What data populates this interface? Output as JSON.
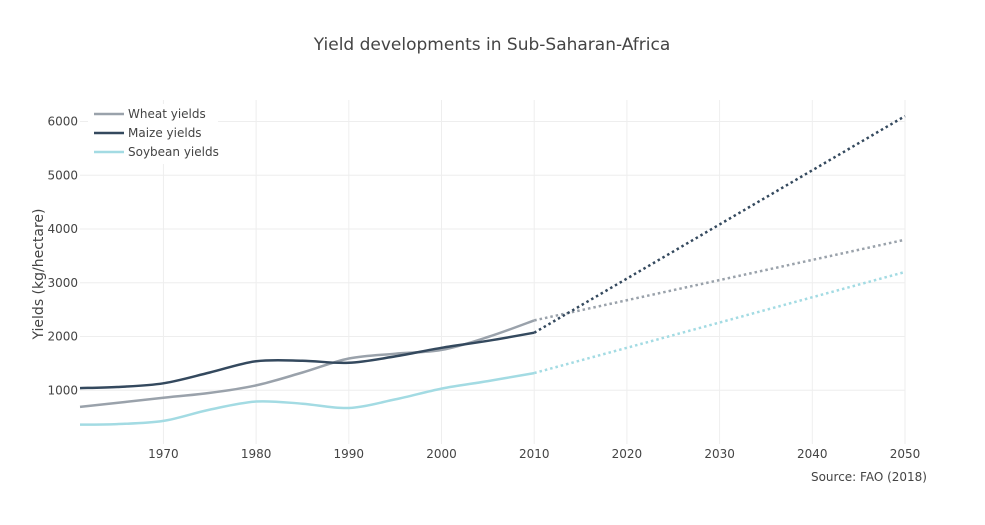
{
  "chart_data": {
    "type": "line",
    "title": "Yield developments in Sub-Saharan-Africa",
    "xlabel": "",
    "ylabel": "Yields (kg/hectare)",
    "source": "Source: FAO (2018)",
    "xlim": [
      1961,
      2050
    ],
    "ylim": [
      0,
      6400
    ],
    "xticks": [
      1970,
      1980,
      1990,
      2000,
      2010,
      2020,
      2030,
      2040,
      2050
    ],
    "yticks": [
      1000,
      2000,
      3000,
      4000,
      5000,
      6000
    ],
    "grid": true,
    "legend_position": "top-left",
    "series": [
      {
        "name": "Wheat yields",
        "color": "#9aa2ab",
        "values": [
          [
            1961,
            690
          ],
          [
            1970,
            860
          ],
          [
            1975,
            950
          ],
          [
            1980,
            1090
          ],
          [
            1985,
            1330
          ],
          [
            1990,
            1590
          ],
          [
            1995,
            1680
          ],
          [
            2000,
            1750
          ],
          [
            2005,
            1990
          ],
          [
            2010,
            2300
          ]
        ],
        "projection": [
          [
            2010,
            2300
          ],
          [
            2050,
            3800
          ]
        ]
      },
      {
        "name": "Maize yields",
        "color": "#34495e",
        "values": [
          [
            1961,
            1040
          ],
          [
            1965,
            1060
          ],
          [
            1970,
            1130
          ],
          [
            1975,
            1330
          ],
          [
            1980,
            1540
          ],
          [
            1985,
            1550
          ],
          [
            1990,
            1510
          ],
          [
            1995,
            1630
          ],
          [
            2000,
            1790
          ],
          [
            2005,
            1920
          ],
          [
            2010,
            2070
          ]
        ],
        "projection": [
          [
            2010,
            2070
          ],
          [
            2050,
            6100
          ]
        ]
      },
      {
        "name": "Soybean yields",
        "color": "#a3dbe3",
        "values": [
          [
            1961,
            360
          ],
          [
            1965,
            370
          ],
          [
            1970,
            430
          ],
          [
            1975,
            640
          ],
          [
            1980,
            790
          ],
          [
            1985,
            750
          ],
          [
            1990,
            670
          ],
          [
            1995,
            830
          ],
          [
            2000,
            1030
          ],
          [
            2005,
            1170
          ],
          [
            2010,
            1320
          ]
        ],
        "projection": [
          [
            2010,
            1320
          ],
          [
            2050,
            3200
          ]
        ]
      }
    ]
  }
}
